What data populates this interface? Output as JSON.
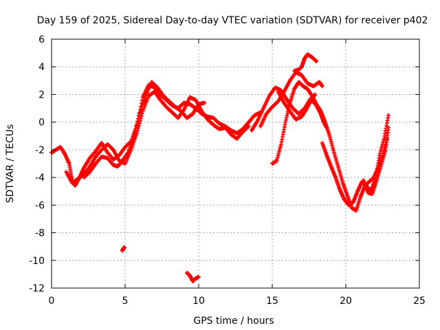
{
  "chart_data": {
    "type": "scatter",
    "title": "Day 159 of 2025, Sidereal Day-to-day VTEC variation (SDTVAR) for receiver p402",
    "xlabel": "GPS time / hours",
    "ylabel": "SDTVAR / TECUs",
    "xlim": [
      0,
      25
    ],
    "ylim": [
      -12,
      6
    ],
    "x_ticks": [
      0,
      5,
      10,
      15,
      20,
      25
    ],
    "y_ticks": [
      -12,
      -10,
      -8,
      -6,
      -4,
      -2,
      0,
      2,
      4,
      6
    ],
    "x_tick_labels": [
      "0",
      "5",
      "10",
      "15",
      "20",
      "25"
    ],
    "y_tick_labels": [
      "-12",
      "-10",
      "-8",
      "-6",
      "-4",
      "-2",
      "0",
      "2",
      "4",
      "6"
    ],
    "grid": true,
    "marker": "plus",
    "color": "#ff0000",
    "series": [
      {
        "name": "track-1",
        "x": [
          0,
          0.3,
          0.6,
          0.9,
          1.2,
          1.4,
          1.6,
          1.9,
          2.2,
          2.6,
          3.0,
          3.4,
          3.8,
          4.2,
          4.6,
          5.0,
          5.4,
          5.8,
          6.2,
          6.6,
          7.0,
          7.4,
          7.8,
          8.2,
          8.6,
          9.0,
          9.4,
          9.8,
          10.2,
          10.6,
          11.0,
          11.4,
          11.8,
          12.2,
          12.6,
          13.0,
          13.4,
          13.8,
          14.2
        ],
        "y": [
          -2.2,
          -2.0,
          -1.8,
          -2.3,
          -3.0,
          -4.2,
          -4.6,
          -4.0,
          -3.3,
          -2.6,
          -2.1,
          -1.5,
          -2.2,
          -2.7,
          -2.4,
          -1.8,
          -1.4,
          -0.2,
          1.8,
          2.7,
          2.5,
          2.0,
          1.6,
          1.2,
          1.0,
          1.4,
          1.3,
          1.0,
          0.6,
          0.4,
          0.3,
          -0.1,
          -0.3,
          -0.6,
          -0.8,
          -0.5,
          0.0,
          0.5,
          0.7
        ]
      },
      {
        "name": "track-2",
        "x": [
          1.0,
          1.4,
          1.8,
          2.2,
          2.6,
          3.0,
          3.4,
          3.8,
          4.2,
          4.6,
          5.0,
          5.4,
          5.8,
          6.2,
          6.6,
          7.0,
          7.4,
          7.8,
          8.2,
          8.6,
          9.0,
          9.4,
          9.8,
          10.2,
          10.6,
          11.0,
          11.4,
          11.8,
          12.2,
          12.6,
          13.0,
          13.4
        ],
        "y": [
          -3.6,
          -4.4,
          -4.1,
          -3.8,
          -3.2,
          -2.5,
          -2.0,
          -1.6,
          -2.0,
          -2.8,
          -3.0,
          -2.0,
          -0.8,
          0.8,
          1.9,
          2.2,
          1.6,
          1.1,
          0.7,
          0.3,
          0.9,
          1.8,
          1.6,
          0.8,
          0.2,
          -0.2,
          -0.5,
          -0.4,
          -0.9,
          -1.2,
          -0.7,
          -0.3
        ]
      },
      {
        "name": "track-3",
        "x": [
          2.2,
          2.6,
          3.0,
          3.4,
          3.8,
          4.2,
          4.5,
          4.8,
          5.2,
          5.6,
          6.0,
          6.4,
          6.8,
          7.2,
          7.6,
          8.0,
          8.4,
          8.8,
          9.2,
          9.6,
          10.0,
          10.4
        ],
        "y": [
          -4.0,
          -3.6,
          -3.0,
          -2.5,
          -2.6,
          -3.1,
          -3.2,
          -2.8,
          -2.2,
          -1.0,
          0.6,
          1.9,
          2.9,
          2.5,
          1.9,
          1.5,
          1.1,
          0.8,
          0.3,
          0.6,
          1.3,
          1.4
        ]
      },
      {
        "name": "track-4",
        "x": [
          13.6,
          14.0,
          14.4,
          14.8,
          15.2,
          15.6,
          16.0,
          16.4,
          16.8,
          17.2,
          17.6,
          18.0,
          18.3,
          18.5,
          18.7
        ],
        "y": [
          -0.6,
          0.1,
          1.0,
          1.9,
          2.5,
          2.3,
          1.6,
          1.0,
          0.6,
          1.0,
          1.7,
          1.2,
          0.6,
          0.0,
          -0.4
        ]
      },
      {
        "name": "track-5",
        "x": [
          14.2,
          14.6,
          15.0,
          15.4,
          15.8,
          16.2,
          16.6,
          17.0,
          17.4,
          17.8,
          18.2,
          18.4
        ],
        "y": [
          -0.3,
          0.6,
          1.1,
          1.5,
          2.2,
          3.0,
          3.6,
          3.4,
          2.8,
          2.6,
          2.9,
          2.6
        ]
      },
      {
        "name": "track-6",
        "x": [
          15.0,
          15.3,
          15.6,
          15.9,
          16.2,
          16.5,
          16.8,
          17.1,
          17.4,
          17.7,
          18.0,
          18.3,
          18.6,
          18.9,
          19.2,
          19.5,
          19.8,
          20.1,
          20.4,
          20.7,
          21.0,
          21.3,
          21.6,
          21.9,
          22.2,
          22.5,
          22.8
        ],
        "y": [
          -3.0,
          -2.8,
          -1.6,
          0.0,
          1.4,
          2.4,
          2.9,
          2.6,
          2.4,
          1.9,
          1.3,
          0.8,
          0.0,
          -1.0,
          -2.2,
          -3.3,
          -4.4,
          -5.3,
          -6.2,
          -6.4,
          -5.4,
          -4.6,
          -4.3,
          -4.0,
          -3.3,
          -2.4,
          -1.2
        ]
      },
      {
        "name": "track-7",
        "x": [
          15.4,
          15.8,
          16.2,
          16.6,
          17.0,
          17.3,
          17.6,
          17.9
        ],
        "y": [
          2.2,
          1.4,
          0.8,
          0.2,
          0.4,
          0.9,
          1.5,
          2.0
        ]
      },
      {
        "name": "track-8",
        "x": [
          16.5,
          16.8,
          17.0,
          17.2,
          17.4,
          17.7,
          18.0
        ],
        "y": [
          3.7,
          3.8,
          4.0,
          4.6,
          4.9,
          4.7,
          4.4
        ]
      },
      {
        "name": "track-9",
        "x": [
          18.4,
          18.7,
          19.0,
          19.3,
          19.6,
          19.9,
          20.2,
          20.5,
          20.8,
          21.1,
          21.4,
          21.7,
          22.0,
          22.3,
          22.6,
          22.9
        ],
        "y": [
          -1.5,
          -2.4,
          -3.2,
          -4.0,
          -4.9,
          -5.6,
          -6.0,
          -5.8,
          -5.0,
          -4.3,
          -4.6,
          -5.0,
          -4.1,
          -2.4,
          -1.2,
          0.5
        ]
      },
      {
        "name": "track-10",
        "x": [
          21.2,
          21.5,
          21.8,
          22.1,
          22.4,
          22.7,
          22.9
        ],
        "y": [
          -4.2,
          -5.1,
          -5.2,
          -4.2,
          -3.1,
          -2.0,
          -0.4
        ]
      },
      {
        "name": "track-11",
        "x": [
          4.8,
          4.88,
          4.95
        ],
        "y": [
          -9.3,
          -9.15,
          -9.05
        ]
      },
      {
        "name": "track-12",
        "x": [
          9.2,
          9.4,
          9.6,
          9.8,
          10.0
        ],
        "y": [
          -10.9,
          -11.1,
          -11.5,
          -11.3,
          -11.2
        ]
      }
    ]
  }
}
